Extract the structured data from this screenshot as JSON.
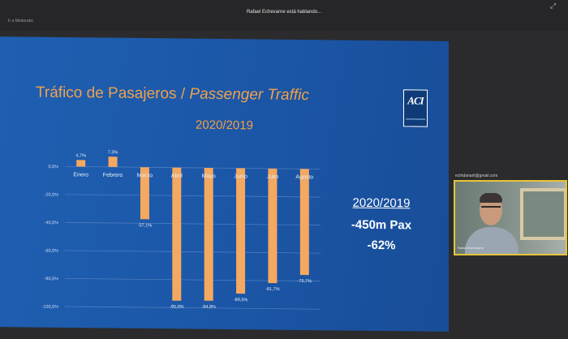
{
  "meeting": {
    "top_left_label": "Ir a Moderatio",
    "speaking_label": "Rafael Echevarne está hablando..."
  },
  "slide": {
    "title_main": "Tráfico de Pasajeros / ",
    "title_italic": "Passenger Traffic",
    "logo_text": "ACI",
    "summary": {
      "line1": "2020/2019",
      "line2": "-450m Pax",
      "line3": "-62%"
    }
  },
  "participant": {
    "email": "echtdanarli@gmail.com",
    "name": "Rafael Echevarne"
  },
  "colors": {
    "bar": "#f4a860",
    "slide_bg": "#1b56a6",
    "accent_text": "#f0a24b"
  },
  "chart_data": {
    "type": "bar",
    "title": "2020/2019",
    "categories": [
      "Enero",
      "Febrero",
      "Marzo",
      "Abril",
      "Mayo",
      "Junio",
      "Julio",
      "Agosto"
    ],
    "values": [
      4.7,
      7.3,
      -37.1,
      -95.0,
      -94.8,
      -89.5,
      -81.7,
      -75.7
    ],
    "data_labels": [
      "4,7%",
      "7,3%",
      "-37,1%",
      "-95,0%",
      "-94,8%",
      "-89,5%",
      "-81,7%",
      "-75,7%"
    ],
    "yticks": [
      0,
      -20,
      -40,
      -60,
      -80,
      -100
    ],
    "ytick_labels": [
      "0,0%",
      "-20,0%",
      "-40,0%",
      "-60,0%",
      "-80,0%",
      "-100,0%"
    ],
    "ylim": [
      -100,
      10
    ],
    "grid": true
  }
}
